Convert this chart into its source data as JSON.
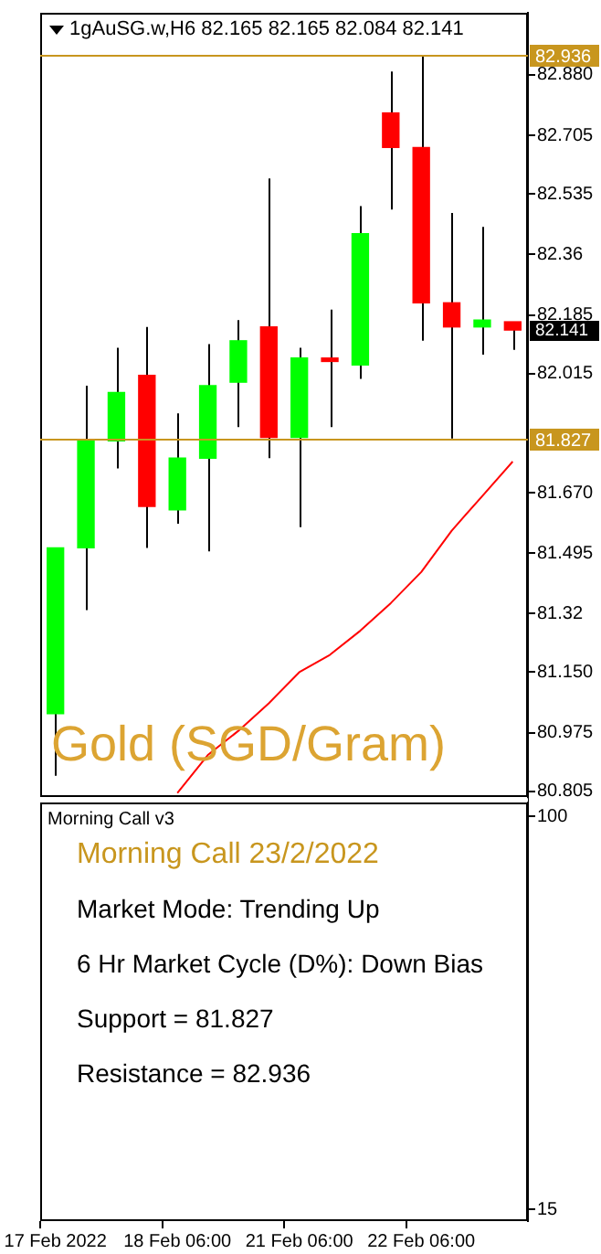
{
  "chart_data": {
    "type": "candlestick",
    "title": "1gAuSG.w,H6  82.165 82.165 82.084 82.141",
    "subtitle": "Morning Call 23/2/2022",
    "categories": [
      "17 Feb 2022",
      null,
      null,
      null,
      "18 Feb 06:00",
      null,
      null,
      null,
      "21 Feb 06:00",
      null,
      null,
      null,
      "22 Feb 06:00",
      null,
      null,
      null
    ],
    "ohlc": [
      [
        81.03,
        81.51,
        80.85,
        81.51
      ],
      [
        81.51,
        81.98,
        81.33,
        81.82
      ],
      [
        81.82,
        82.09,
        81.74,
        81.96
      ],
      [
        82.01,
        82.15,
        81.51,
        81.63
      ],
      [
        81.62,
        81.9,
        81.58,
        81.77
      ],
      [
        81.77,
        82.1,
        81.5,
        81.98
      ],
      [
        81.99,
        82.17,
        81.86,
        82.11
      ],
      [
        82.15,
        82.58,
        81.77,
        81.83
      ],
      [
        81.83,
        82.09,
        81.57,
        82.06
      ],
      [
        82.06,
        82.2,
        81.86,
        82.05
      ],
      [
        82.04,
        82.5,
        82.0,
        82.42
      ],
      [
        82.77,
        82.89,
        82.49,
        82.67
      ],
      [
        82.67,
        82.936,
        82.11,
        82.22
      ],
      [
        82.22,
        82.48,
        81.827,
        82.15
      ],
      [
        82.15,
        82.44,
        82.07,
        82.17
      ],
      [
        82.165,
        82.165,
        82.084,
        82.141
      ]
    ],
    "colors": [
      "#00ff00",
      "#00ff00",
      "#00ff00",
      "#ff0000",
      "#00ff00",
      "#00ff00",
      "#00ff00",
      "#ff0000",
      "#00ff00",
      "#ff0000",
      "#00ff00",
      "#ff0000",
      "#ff0000",
      "#ff0000",
      "#00ff00",
      "#ff0000"
    ],
    "series": [
      {
        "type": "line",
        "color": "#ff0000",
        "values": [
          null,
          null,
          null,
          null,
          80.8,
          80.91,
          80.98,
          81.06,
          81.15,
          81.2,
          81.27,
          81.35,
          81.44,
          81.56,
          81.66,
          81.76
        ]
      }
    ],
    "ylim": [
      79.56,
      83.06
    ],
    "yticks": [
      {
        "value": 82.88,
        "label": "82.880"
      },
      82.705,
      82.535,
      82.36,
      82.185,
      82.015,
      {
        "value": 81.67,
        "label": "81.670"
      },
      81.495,
      81.32,
      {
        "value": 81.15,
        "label": "81.150"
      },
      80.975,
      80.805
    ],
    "ref_lines": [
      {
        "axis": "y",
        "value": 82.936,
        "label": "82.936",
        "color": "#c8961e"
      },
      {
        "axis": "y",
        "value": 81.827,
        "label": "81.827",
        "color": "#c8961e"
      }
    ],
    "annotations": [
      "Gold (SGD/Gram)",
      "82.141",
      "Morning Call v3",
      "Market Mode: Trending Up",
      "6 Hr Market Cycle (D%): Down Bias",
      "Support = 81.827",
      "Resistance = 82.936"
    ],
    "y2lim": [
      12.3,
      273
    ],
    "y2ticks": [
      100,
      15
    ],
    "legend": false
  }
}
